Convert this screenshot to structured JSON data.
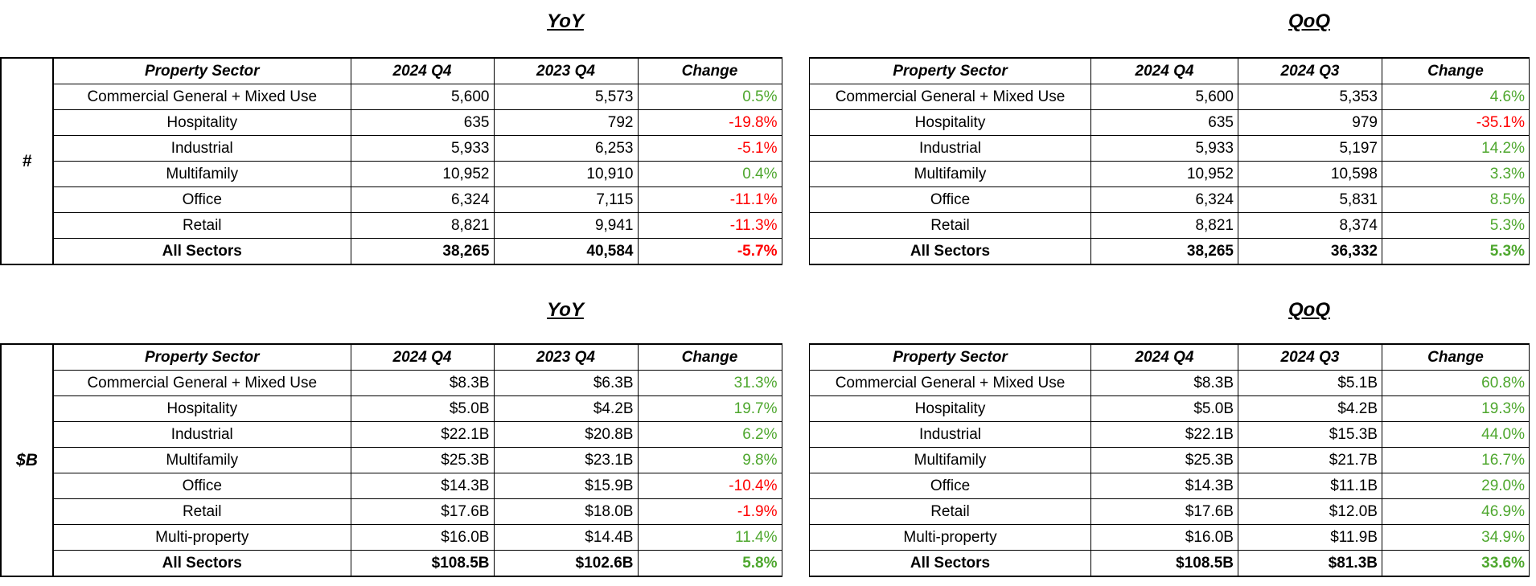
{
  "sections": [
    {
      "label": "#",
      "tables": [
        {
          "title": "YoY",
          "columns": [
            "Property Sector",
            "2024 Q4",
            "2023 Q4",
            "Change"
          ],
          "rows": [
            [
              "Commercial General + Mixed Use",
              "5,600",
              "5,573",
              "0.5%"
            ],
            [
              "Hospitality",
              "635",
              "792",
              "-19.8%"
            ],
            [
              "Industrial",
              "5,933",
              "6,253",
              "-5.1%"
            ],
            [
              "Multifamily",
              "10,952",
              "10,910",
              "0.4%"
            ],
            [
              "Office",
              "6,324",
              "7,115",
              "-11.1%"
            ],
            [
              "Retail",
              "8,821",
              "9,941",
              "-11.3%"
            ],
            [
              "All Sectors",
              "38,265",
              "40,584",
              "-5.7%"
            ]
          ]
        },
        {
          "title": "QoQ",
          "columns": [
            "Property Sector",
            "2024 Q4",
            "2024 Q3",
            "Change"
          ],
          "rows": [
            [
              "Commercial General + Mixed Use",
              "5,600",
              "5,353",
              "4.6%"
            ],
            [
              "Hospitality",
              "635",
              "979",
              "-35.1%"
            ],
            [
              "Industrial",
              "5,933",
              "5,197",
              "14.2%"
            ],
            [
              "Multifamily",
              "10,952",
              "10,598",
              "3.3%"
            ],
            [
              "Office",
              "6,324",
              "5,831",
              "8.5%"
            ],
            [
              "Retail",
              "8,821",
              "8,374",
              "5.3%"
            ],
            [
              "All Sectors",
              "38,265",
              "36,332",
              "5.3%"
            ]
          ]
        }
      ]
    },
    {
      "label": "$B",
      "tables": [
        {
          "title": "YoY",
          "columns": [
            "Property Sector",
            "2024 Q4",
            "2023 Q4",
            "Change"
          ],
          "rows": [
            [
              "Commercial General + Mixed Use",
              "$8.3B",
              "$6.3B",
              "31.3%"
            ],
            [
              "Hospitality",
              "$5.0B",
              "$4.2B",
              "19.7%"
            ],
            [
              "Industrial",
              "$22.1B",
              "$20.8B",
              "6.2%"
            ],
            [
              "Multifamily",
              "$25.3B",
              "$23.1B",
              "9.8%"
            ],
            [
              "Office",
              "$14.3B",
              "$15.9B",
              "-10.4%"
            ],
            [
              "Retail",
              "$17.6B",
              "$18.0B",
              "-1.9%"
            ],
            [
              "Multi-property",
              "$16.0B",
              "$14.4B",
              "11.4%"
            ],
            [
              "All Sectors",
              "$108.5B",
              "$102.6B",
              "5.8%"
            ]
          ]
        },
        {
          "title": "QoQ",
          "columns": [
            "Property Sector",
            "2024 Q4",
            "2024 Q3",
            "Change"
          ],
          "rows": [
            [
              "Commercial General + Mixed Use",
              "$8.3B",
              "$5.1B",
              "60.8%"
            ],
            [
              "Hospitality",
              "$5.0B",
              "$4.2B",
              "19.3%"
            ],
            [
              "Industrial",
              "$22.1B",
              "$15.3B",
              "44.0%"
            ],
            [
              "Multifamily",
              "$25.3B",
              "$21.7B",
              "16.7%"
            ],
            [
              "Office",
              "$14.3B",
              "$11.1B",
              "29.0%"
            ],
            [
              "Retail",
              "$17.6B",
              "$12.0B",
              "46.9%"
            ],
            [
              "Multi-property",
              "$16.0B",
              "$11.9B",
              "34.9%"
            ],
            [
              "All Sectors",
              "$108.5B",
              "$81.3B",
              "33.6%"
            ]
          ]
        }
      ]
    }
  ]
}
